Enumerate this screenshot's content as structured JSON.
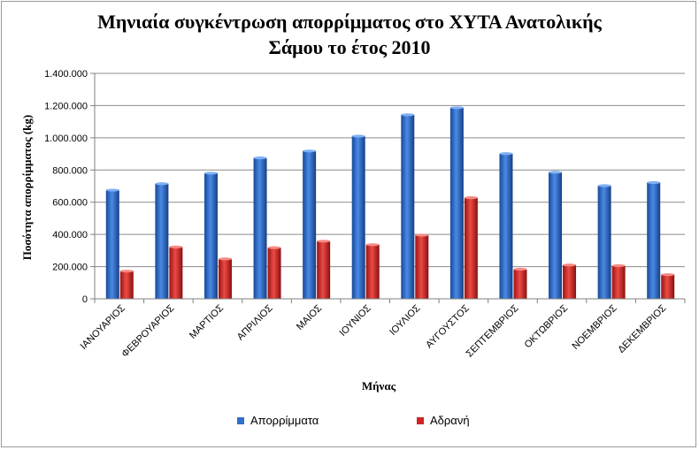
{
  "chart_data": {
    "type": "bar",
    "title_line1": "Μηνιαία συγκέντρωση απορρίμματος στο ΧΥΤΑ Ανατολικής",
    "title_line2": "Σάμου το έτος 2010",
    "xlabel": "Μήνας",
    "ylabel": "Ποσότητα απορρίμματος (kg)",
    "categories": [
      "ΙΑΝΟΥΑΡΙΟΣ",
      "ΦΕΒΡΟΥΑΡΙΟΣ",
      "ΜΑΡΤΙΟΣ",
      "ΑΠΡΙΛΙΟΣ",
      "ΜΑΙΟΣ",
      "ΙΟΥΝΙΟΣ",
      "ΙΟΥΛΙΟΣ",
      "ΑΥΓΟΥΣΤΟΣ",
      "ΣΕΠΤΕΜΒΡΙΟΣ",
      "ΟΚΤΩΒΡΙΟΣ",
      "ΝΟΕΜΒΡΙΟΣ",
      "ΔΕΚΕΜΒΡΙΟΣ"
    ],
    "series": [
      {
        "name": "Απορρίμματα",
        "color": "#2e6fd0",
        "values": [
          675000,
          715000,
          780000,
          875000,
          918000,
          1010000,
          1143000,
          1187000,
          902000,
          786000,
          703000,
          722000
        ]
      },
      {
        "name": "Αδρανή",
        "color": "#d02424",
        "values": [
          172000,
          322000,
          248000,
          318000,
          358000,
          336000,
          395000,
          628000,
          184000,
          210000,
          206000,
          150000
        ]
      }
    ],
    "ylim": [
      0,
      1400000
    ],
    "yticks": [
      0,
      200000,
      400000,
      600000,
      800000,
      1000000,
      1200000,
      1400000
    ],
    "ytick_labels": [
      "0",
      "200.000",
      "400.000",
      "600.000",
      "800.000",
      "1.000.000",
      "1.200.000",
      "1.400.000"
    ],
    "grid": true,
    "legend_position": "bottom"
  }
}
